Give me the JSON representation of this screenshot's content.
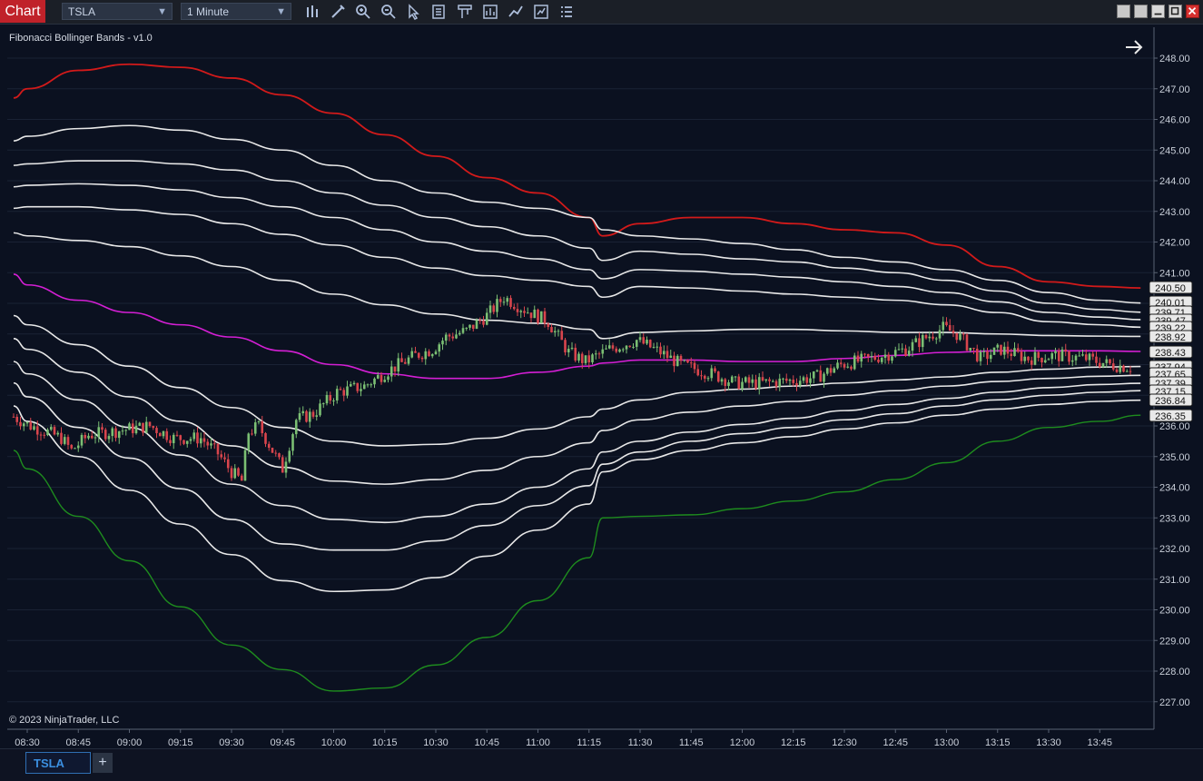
{
  "app": {
    "chart_tab_label": "Chart"
  },
  "toolbar": {
    "instrument": "TSLA",
    "interval": "1 Minute",
    "icons": [
      "bars-type-icon",
      "draw-pencil-icon",
      "zoom-in-icon",
      "zoom-out-icon",
      "pointer-icon",
      "data-box-icon",
      "chart-trader-icon",
      "indicators-icon",
      "strategies-icon",
      "properties-icon",
      "list-icon"
    ]
  },
  "window_buttons": [
    "tile-icon",
    "restore-icon",
    "minimize-icon",
    "maximize-icon",
    "close-icon"
  ],
  "chart": {
    "indicator_label": "Fibonacci Bollinger Bands - v1.0",
    "copyright": "© 2023 NinjaTrader, LLC",
    "arrow_icon": "right-arrow-icon",
    "colors": {
      "background": "#0b1120",
      "grid": "#1a2234",
      "upper_band": "#d21a1a",
      "lower_band": "#1e8c1e",
      "mid_band": "#d41fd4",
      "inner_bands": "#e8e8e8",
      "candle_up": "#7bbf73",
      "candle_down": "#d9454d",
      "axis_text": "#c9cfd9"
    },
    "y_ticks": [
      "248.00",
      "247.00",
      "246.00",
      "245.00",
      "244.00",
      "243.00",
      "242.00",
      "241.00",
      "240.00",
      "239.00",
      "238.00",
      "237.00",
      "236.00",
      "235.00",
      "234.00",
      "233.00",
      "232.00",
      "231.00",
      "230.00",
      "229.00",
      "228.00",
      "227.00"
    ],
    "x_ticks": [
      "08:30",
      "08:45",
      "09:00",
      "09:15",
      "09:30",
      "09:45",
      "10:00",
      "10:15",
      "10:30",
      "10:45",
      "11:00",
      "11:15",
      "11:30",
      "11:45",
      "12:00",
      "12:15",
      "12:30",
      "12:45",
      "13:00",
      "13:15",
      "13:30",
      "13:45"
    ],
    "price_labels": [
      "240.50",
      "240.01",
      "239.71",
      "239.47",
      "239.22",
      "238.92",
      "238.43",
      "237.94",
      "237.65",
      "237.39",
      "237.15",
      "236.84",
      "236.35"
    ]
  },
  "chart_data": {
    "type": "line",
    "ylim": [
      226.5,
      249
    ],
    "x_times": [
      "08:26",
      "08:30",
      "08:45",
      "09:00",
      "09:15",
      "09:30",
      "09:45",
      "10:00",
      "10:15",
      "10:30",
      "10:45",
      "11:00",
      "11:15",
      "11:19",
      "11:30",
      "11:45",
      "12:00",
      "12:15",
      "12:30",
      "12:45",
      "13:00",
      "13:15",
      "13:30",
      "13:45",
      "13:57"
    ],
    "series": [
      {
        "values": [
          246.7,
          247.0,
          247.6,
          247.8,
          247.7,
          247.35,
          246.8,
          246.2,
          245.5,
          244.8,
          244.1,
          243.6,
          242.8,
          242.2,
          242.6,
          242.8,
          242.8,
          242.6,
          242.4,
          242.3,
          241.9,
          241.2,
          240.7,
          240.55,
          240.5
        ]
      },
      {
        "values": [
          245.3,
          245.45,
          245.7,
          245.8,
          245.65,
          245.35,
          245.0,
          244.5,
          244.0,
          243.6,
          243.3,
          243.1,
          242.8,
          242.4,
          242.2,
          242.1,
          241.95,
          241.75,
          241.5,
          241.35,
          241.1,
          240.75,
          240.35,
          240.1,
          240.01
        ]
      },
      {
        "values": [
          244.5,
          244.55,
          244.65,
          244.65,
          244.55,
          244.35,
          244.0,
          243.6,
          243.2,
          242.8,
          242.5,
          242.2,
          241.8,
          241.4,
          241.7,
          241.6,
          241.45,
          241.35,
          241.15,
          241.0,
          240.75,
          240.4,
          240.0,
          239.8,
          239.71
        ]
      },
      {
        "values": [
          243.8,
          243.85,
          243.9,
          243.85,
          243.7,
          243.45,
          243.15,
          242.8,
          242.4,
          242.0,
          241.7,
          241.45,
          241.1,
          240.8,
          241.1,
          241.05,
          240.95,
          240.85,
          240.7,
          240.55,
          240.35,
          240.05,
          239.7,
          239.55,
          239.47
        ]
      },
      {
        "values": [
          243.1,
          243.15,
          243.15,
          243.05,
          242.9,
          242.6,
          242.25,
          241.9,
          241.5,
          241.15,
          240.9,
          240.75,
          240.55,
          240.2,
          240.55,
          240.5,
          240.4,
          240.3,
          240.2,
          240.1,
          239.95,
          239.7,
          239.4,
          239.3,
          239.22
        ]
      },
      {
        "values": [
          242.3,
          242.2,
          242.05,
          241.85,
          241.55,
          241.2,
          240.75,
          240.3,
          239.95,
          239.65,
          239.45,
          239.35,
          239.15,
          238.85,
          239.05,
          239.1,
          239.15,
          239.15,
          239.1,
          239.05,
          239.05,
          239.0,
          238.95,
          238.93,
          238.92
        ]
      },
      {
        "values": [
          240.95,
          240.6,
          240.1,
          239.7,
          239.3,
          238.9,
          238.45,
          238.0,
          237.7,
          237.55,
          237.55,
          237.75,
          237.95,
          238.05,
          238.15,
          238.15,
          238.1,
          238.1,
          238.2,
          238.3,
          238.4,
          238.45,
          238.45,
          238.45,
          238.43
        ]
      },
      {
        "values": [
          239.6,
          239.3,
          238.65,
          237.95,
          237.25,
          236.6,
          235.95,
          235.5,
          235.35,
          235.4,
          235.6,
          235.9,
          236.3,
          236.55,
          236.85,
          237.1,
          237.2,
          237.3,
          237.4,
          237.5,
          237.6,
          237.75,
          237.85,
          237.92,
          237.94
        ]
      },
      {
        "values": [
          238.85,
          238.5,
          237.75,
          236.95,
          236.15,
          235.35,
          234.65,
          234.2,
          234.1,
          234.25,
          234.55,
          235.0,
          235.45,
          235.85,
          236.2,
          236.45,
          236.65,
          236.8,
          237.0,
          237.15,
          237.3,
          237.45,
          237.55,
          237.62,
          237.65
        ]
      },
      {
        "values": [
          238.1,
          237.7,
          236.85,
          235.95,
          235.05,
          234.1,
          233.4,
          232.95,
          232.85,
          233.05,
          233.45,
          234.0,
          234.6,
          235.15,
          235.5,
          235.8,
          236.05,
          236.25,
          236.5,
          236.7,
          236.9,
          237.1,
          237.25,
          237.35,
          237.39
        ]
      },
      {
        "values": [
          237.4,
          236.95,
          235.95,
          234.95,
          233.95,
          232.95,
          232.15,
          231.95,
          231.95,
          232.25,
          232.75,
          233.4,
          234.05,
          234.75,
          235.15,
          235.5,
          235.75,
          235.95,
          236.2,
          236.4,
          236.65,
          236.85,
          237.0,
          237.1,
          237.15
        ]
      },
      {
        "values": [
          236.65,
          236.15,
          235.0,
          233.9,
          232.8,
          231.8,
          230.95,
          230.6,
          230.65,
          231.05,
          231.75,
          232.6,
          233.45,
          234.5,
          234.9,
          235.2,
          235.45,
          235.65,
          235.9,
          236.1,
          236.35,
          236.55,
          236.7,
          236.8,
          236.84
        ]
      },
      {
        "values": [
          235.2,
          234.6,
          233.05,
          231.6,
          230.1,
          228.85,
          228.05,
          227.35,
          227.45,
          228.2,
          229.1,
          230.3,
          231.7,
          233.0,
          233.05,
          233.1,
          233.3,
          233.55,
          233.85,
          234.25,
          234.8,
          235.5,
          235.95,
          236.15,
          236.35
        ]
      }
    ],
    "candles_close_path": [
      [
        0,
        236.3
      ],
      [
        5,
        236.0
      ],
      [
        10,
        235.8
      ],
      [
        14,
        235.6
      ],
      [
        17,
        235.2
      ],
      [
        22,
        235.7
      ],
      [
        28,
        235.8
      ],
      [
        34,
        235.9
      ],
      [
        40,
        236.0
      ],
      [
        47,
        235.6
      ],
      [
        55,
        235.6
      ],
      [
        60,
        235.1
      ],
      [
        64,
        234.5
      ],
      [
        67,
        234.2
      ],
      [
        69,
        235.8
      ],
      [
        72,
        236.0
      ],
      [
        75,
        235.4
      ],
      [
        79,
        234.6
      ],
      [
        83,
        236.2
      ],
      [
        88,
        236.4
      ],
      [
        95,
        237.1
      ],
      [
        103,
        237.3
      ],
      [
        110,
        237.8
      ],
      [
        118,
        238.3
      ],
      [
        123,
        238.5
      ],
      [
        127,
        238.9
      ],
      [
        133,
        239.1
      ],
      [
        139,
        239.6
      ],
      [
        144,
        240.2
      ],
      [
        150,
        239.8
      ],
      [
        157,
        239.4
      ],
      [
        163,
        238.4
      ],
      [
        168,
        238.1
      ],
      [
        175,
        238.5
      ],
      [
        183,
        238.8
      ],
      [
        190,
        238.4
      ],
      [
        196,
        238.0
      ],
      [
        205,
        237.7
      ],
      [
        212,
        237.4
      ],
      [
        220,
        237.4
      ],
      [
        230,
        237.5
      ],
      [
        236,
        237.6
      ],
      [
        243,
        238.0
      ],
      [
        252,
        238.2
      ],
      [
        262,
        238.5
      ],
      [
        273,
        239.2
      ],
      [
        277,
        239.0
      ],
      [
        284,
        238.2
      ],
      [
        290,
        238.5
      ],
      [
        298,
        238.2
      ],
      [
        306,
        238.3
      ],
      [
        315,
        238.2
      ],
      [
        322,
        238.0
      ],
      [
        329,
        237.9
      ]
    ]
  }
}
